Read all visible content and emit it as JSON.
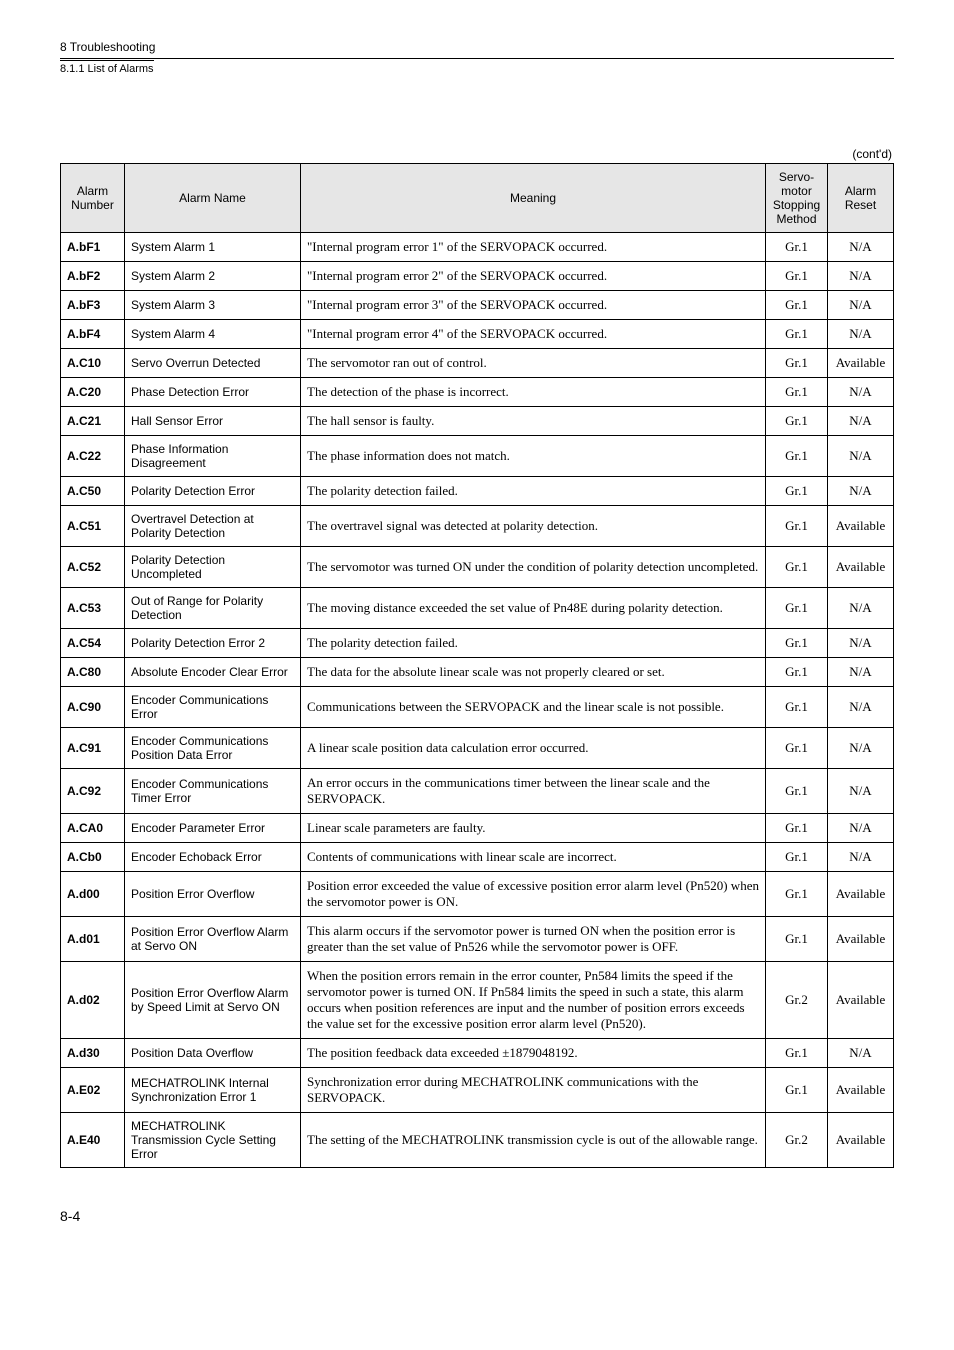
{
  "header": {
    "section": "8 Troubleshooting",
    "subsection": "8.1.1 List of Alarms"
  },
  "contd": "(cont'd)",
  "table": {
    "columns": {
      "alarm_number": "Alarm Number",
      "alarm_name": "Alarm Name",
      "meaning": "Meaning",
      "stop_method": "Servo-motor Stopping Method",
      "alarm_reset": "Alarm Reset"
    },
    "rows": [
      {
        "num": "A.bF1",
        "name": "System Alarm 1",
        "mean": "\"Internal program error 1\" of the SERVOPACK occurred.",
        "stop": "Gr.1",
        "reset": "N/A"
      },
      {
        "num": "A.bF2",
        "name": "System Alarm 2",
        "mean": "\"Internal program error 2\" of the SERVOPACK occurred.",
        "stop": "Gr.1",
        "reset": "N/A"
      },
      {
        "num": "A.bF3",
        "name": "System Alarm 3",
        "mean": "\"Internal program error 3\" of the SERVOPACK occurred.",
        "stop": "Gr.1",
        "reset": "N/A"
      },
      {
        "num": "A.bF4",
        "name": "System Alarm 4",
        "mean": "\"Internal program error 4\" of the SERVOPACK occurred.",
        "stop": "Gr.1",
        "reset": "N/A"
      },
      {
        "num": "A.C10",
        "name": "Servo Overrun Detected",
        "mean": "The servomotor ran out of control.",
        "stop": "Gr.1",
        "reset": "Available"
      },
      {
        "num": "A.C20",
        "name": "Phase Detection Error",
        "mean": "The detection of the phase is incorrect.",
        "stop": "Gr.1",
        "reset": "N/A"
      },
      {
        "num": "A.C21",
        "name": "Hall Sensor Error",
        "mean": "The hall sensor is faulty.",
        "stop": "Gr.1",
        "reset": "N/A"
      },
      {
        "num": "A.C22",
        "name": "Phase Information Disagreement",
        "mean": "The phase information does not match.",
        "stop": "Gr.1",
        "reset": "N/A"
      },
      {
        "num": "A.C50",
        "name": "Polarity Detection Error",
        "mean": "The polarity detection failed.",
        "stop": "Gr.1",
        "reset": "N/A"
      },
      {
        "num": "A.C51",
        "name": "Overtravel Detection at Polarity Detection",
        "mean": "The overtravel signal was detected at polarity detection.",
        "stop": "Gr.1",
        "reset": "Available"
      },
      {
        "num": "A.C52",
        "name": "Polarity Detection Uncompleted",
        "mean": "The servomotor was turned ON under the condition of polarity detection uncompleted.",
        "stop": "Gr.1",
        "reset": "Available"
      },
      {
        "num": "A.C53",
        "name": "Out of Range for Polarity Detection",
        "mean": "The moving distance exceeded the set value of Pn48E during polarity detection.",
        "stop": "Gr.1",
        "reset": "N/A"
      },
      {
        "num": "A.C54",
        "name": "Polarity Detection Error 2",
        "mean": "The polarity detection failed.",
        "stop": "Gr.1",
        "reset": "N/A"
      },
      {
        "num": "A.C80",
        "name": "Absolute Encoder Clear Error",
        "mean": "The data for the absolute linear scale was not properly cleared or set.",
        "stop": "Gr.1",
        "reset": "N/A"
      },
      {
        "num": "A.C90",
        "name": "Encoder Communications Error",
        "mean": "Communications between the SERVOPACK and the linear scale is not possible.",
        "stop": "Gr.1",
        "reset": "N/A"
      },
      {
        "num": "A.C91",
        "name": "Encoder Communications Position Data Error",
        "mean": "A linear scale position data calculation error occurred.",
        "stop": "Gr.1",
        "reset": "N/A"
      },
      {
        "num": "A.C92",
        "name": "Encoder Communications Timer Error",
        "mean": "An error occurs in the communications timer between the linear scale and the SERVOPACK.",
        "stop": "Gr.1",
        "reset": "N/A"
      },
      {
        "num": "A.CA0",
        "name": "Encoder Parameter Error",
        "mean": "Linear scale parameters are faulty.",
        "stop": "Gr.1",
        "reset": "N/A"
      },
      {
        "num": "A.Cb0",
        "name": "Encoder Echoback Error",
        "mean": "Contents of communications with linear scale are incorrect.",
        "stop": "Gr.1",
        "reset": "N/A"
      },
      {
        "num": "A.d00",
        "name": "Position Error Overflow",
        "mean": "Position error exceeded the value of excessive position error alarm level (Pn520) when the servomotor power is ON.",
        "stop": "Gr.1",
        "reset": "Available"
      },
      {
        "num": "A.d01",
        "name": "Position Error Overflow Alarm at Servo ON",
        "mean": "This alarm occurs if the servomotor power is turned ON when the position error is greater than the set value of Pn526 while the servomotor power is OFF.",
        "stop": "Gr.1",
        "reset": "Available"
      },
      {
        "num": "A.d02",
        "name": "Position Error Overflow Alarm by Speed Limit at Servo ON",
        "mean": "When the position errors remain in the error counter, Pn584 limits the speed if the servomotor power is turned ON. If Pn584 limits the speed in such a state, this alarm occurs when position references are input and the number of position errors exceeds the value set for the excessive position error alarm level (Pn520).",
        "stop": "Gr.2",
        "reset": "Available"
      },
      {
        "num": "A.d30",
        "name": "Position Data Overflow",
        "mean": "The position feedback data exceeded ±1879048192.",
        "stop": "Gr.1",
        "reset": "N/A"
      },
      {
        "num": "A.E02",
        "name": "MECHATROLINK Internal Synchronization Error 1",
        "mean": "Synchronization error during MECHATROLINK communications with the SERVOPACK.",
        "stop": "Gr.1",
        "reset": "Available"
      },
      {
        "num": "A.E40",
        "name": "MECHATROLINK Transmission Cycle Setting Error",
        "mean": "The setting of the MECHATROLINK transmission cycle is out of the allowable range.",
        "stop": "Gr.2",
        "reset": "Available"
      }
    ]
  },
  "pagenum": "8-4"
}
